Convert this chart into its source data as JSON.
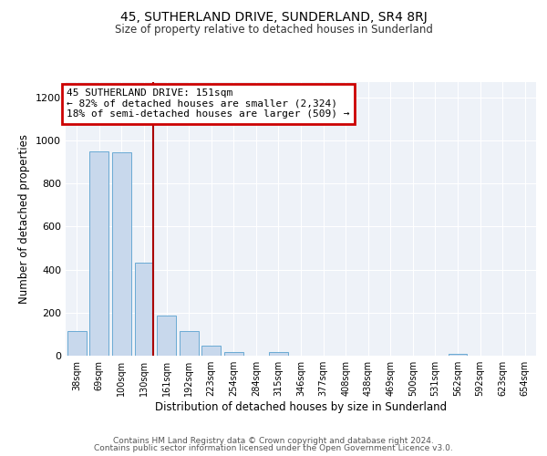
{
  "title": "45, SUTHERLAND DRIVE, SUNDERLAND, SR4 8RJ",
  "subtitle": "Size of property relative to detached houses in Sunderland",
  "xlabel": "Distribution of detached houses by size in Sunderland",
  "ylabel": "Number of detached properties",
  "bar_values": [
    115,
    950,
    945,
    430,
    185,
    115,
    48,
    18,
    0,
    15,
    0,
    0,
    0,
    0,
    0,
    0,
    0,
    10,
    0,
    0,
    0
  ],
  "bar_labels": [
    "38sqm",
    "69sqm",
    "100sqm",
    "130sqm",
    "161sqm",
    "192sqm",
    "223sqm",
    "254sqm",
    "284sqm",
    "315sqm",
    "346sqm",
    "377sqm",
    "408sqm",
    "438sqm",
    "469sqm",
    "500sqm",
    "531sqm",
    "562sqm",
    "592sqm",
    "623sqm",
    "654sqm"
  ],
  "bar_color": "#c8d8ec",
  "bar_edge_color": "#6aaad4",
  "vline_color": "#aa0000",
  "annotation_title": "45 SUTHERLAND DRIVE: 151sqm",
  "annotation_line1": "← 82% of detached houses are smaller (2,324)",
  "annotation_line2": "18% of semi-detached houses are larger (509) →",
  "annotation_box_edgecolor": "#cc0000",
  "ylim": [
    0,
    1270
  ],
  "yticks": [
    0,
    200,
    400,
    600,
    800,
    1000,
    1200
  ],
  "footer1": "Contains HM Land Registry data © Crown copyright and database right 2024.",
  "footer2": "Contains public sector information licensed under the Open Government Licence v3.0.",
  "bg_color": "#eef2f8",
  "fig_bg_color": "#ffffff",
  "grid_color": "#ffffff"
}
